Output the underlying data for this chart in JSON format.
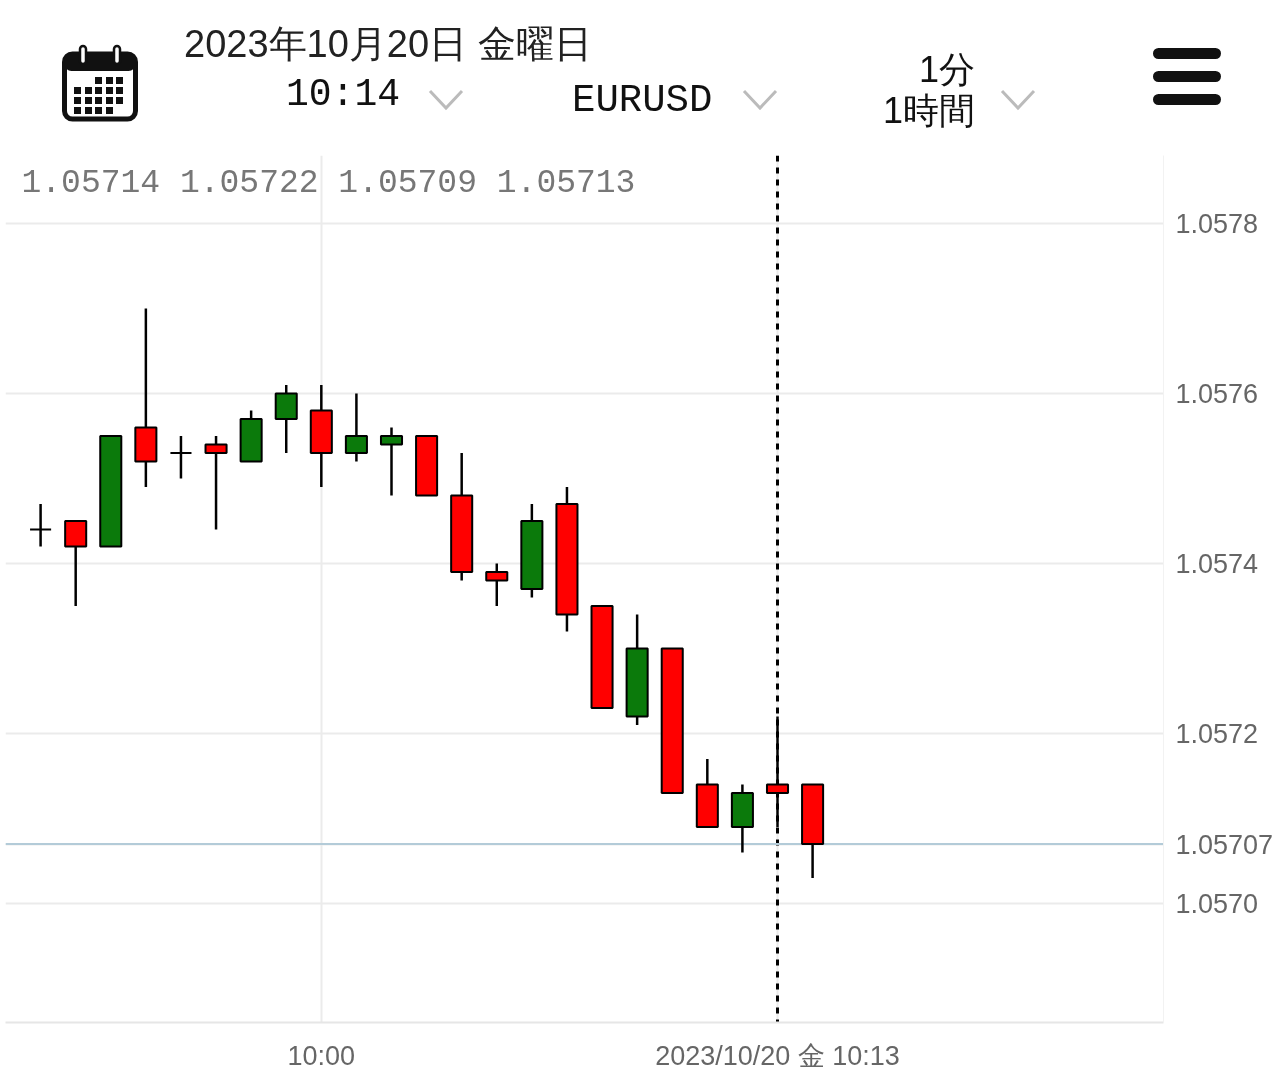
{
  "chart_data": {
    "type": "candlestick",
    "title": "2023年10月20日 金曜日",
    "subtitle": "EURUSD",
    "annotations": [
      "10:14",
      "1分",
      "1時間",
      "1.05714 1.05722 1.05709 1.05713"
    ],
    "x": [
      "2023-10-20T09:52",
      "2023-10-20T09:53",
      "2023-10-20T09:54",
      "2023-10-20T09:55",
      "2023-10-20T09:56",
      "2023-10-20T09:57",
      "2023-10-20T09:58",
      "2023-10-20T09:59",
      "2023-10-20T10:00",
      "2023-10-20T10:01",
      "2023-10-20T10:02",
      "2023-10-20T10:03",
      "2023-10-20T10:04",
      "2023-10-20T10:05",
      "2023-10-20T10:06",
      "2023-10-20T10:07",
      "2023-10-20T10:08",
      "2023-10-20T10:09",
      "2023-10-20T10:10",
      "2023-10-20T10:11",
      "2023-10-20T10:12",
      "2023-10-20T10:13",
      "2023-10-20T10:14"
    ],
    "ohlc": [
      [
        1.05744,
        1.05747,
        1.05742,
        1.05744
      ],
      [
        1.05745,
        1.05745,
        1.05735,
        1.05742
      ],
      [
        1.05742,
        1.05755,
        1.05742,
        1.05755
      ],
      [
        1.05756,
        1.0577,
        1.05749,
        1.05752
      ],
      [
        1.05753,
        1.05755,
        1.0575,
        1.05753
      ],
      [
        1.05754,
        1.05755,
        1.05744,
        1.05753
      ],
      [
        1.05752,
        1.05758,
        1.05752,
        1.05757
      ],
      [
        1.05757,
        1.05761,
        1.05753,
        1.0576
      ],
      [
        1.05758,
        1.05761,
        1.05749,
        1.05753
      ],
      [
        1.05753,
        1.0576,
        1.05752,
        1.05755
      ],
      [
        1.05754,
        1.05756,
        1.05748,
        1.05755
      ],
      [
        1.05755,
        1.05755,
        1.05748,
        1.05748
      ],
      [
        1.05748,
        1.05753,
        1.05738,
        1.05739
      ],
      [
        1.05739,
        1.0574,
        1.05735,
        1.05738
      ],
      [
        1.05737,
        1.05747,
        1.05736,
        1.05745
      ],
      [
        1.05747,
        1.05749,
        1.05732,
        1.05734
      ],
      [
        1.05735,
        1.05735,
        1.05723,
        1.05723
      ],
      [
        1.05722,
        1.05734,
        1.05721,
        1.0573
      ],
      [
        1.0573,
        1.0573,
        1.05713,
        1.05713
      ],
      [
        1.05714,
        1.05717,
        1.05709,
        1.05709
      ],
      [
        1.05709,
        1.05714,
        1.05706,
        1.05713
      ],
      [
        1.05714,
        1.05722,
        1.05709,
        1.05713
      ],
      [
        1.05714,
        1.05714,
        1.05703,
        1.05707
      ]
    ],
    "colors": [
      "#000000",
      "#ff0000",
      "#0b7a0b",
      "#ff0000",
      "#000000",
      "#ff0000",
      "#0b7a0b",
      "#0b7a0b",
      "#ff0000",
      "#0b7a0b",
      "#0b7a0b",
      "#ff0000",
      "#ff0000",
      "#ff0000",
      "#0b7a0b",
      "#ff0000",
      "#ff0000",
      "#0b7a0b",
      "#ff0000",
      "#ff0000",
      "#0b7a0b",
      "#ff0000",
      "#ff0000"
    ],
    "xlim": [
      "2023-10-20T09:51",
      "2023-10-20T10:24"
    ],
    "xticks": [
      {
        "value": "2023-10-20T10:00",
        "label": "10:00"
      },
      {
        "value": "2023-10-20T10:13",
        "label": "2023/10/20 金 10:13"
      }
    ],
    "ylim": [
      1.05686,
      1.05788
    ],
    "yticks": [
      {
        "value": 1.057,
        "label": "1.0570"
      },
      {
        "value": 1.05707,
        "label": "1.05707"
      },
      1.0572,
      1.0574,
      1.0576,
      1.0578
    ],
    "ref_lines": [
      {
        "axis": "x",
        "value": "2023-10-20T10:13",
        "color": "#000000",
        "line_style": "dashed"
      },
      {
        "axis": "y",
        "value": 1.05707,
        "color": "#b3cbd8",
        "line_style": "solid"
      }
    ],
    "grid": true
  }
}
